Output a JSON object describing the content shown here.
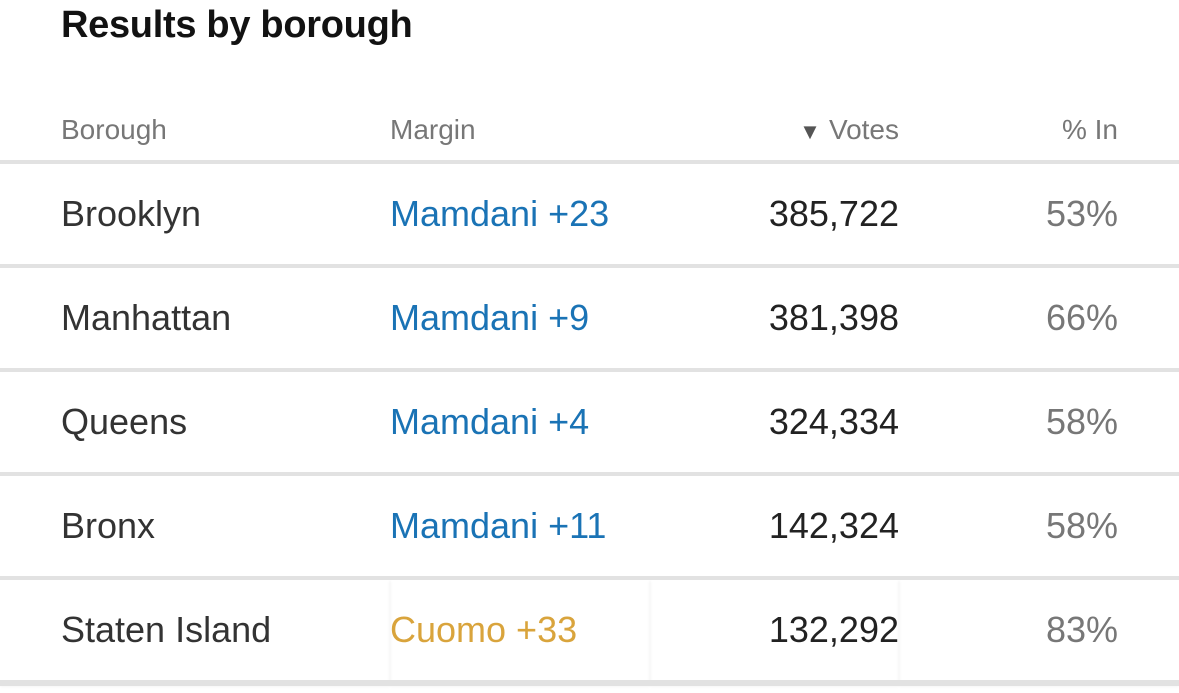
{
  "title": "Results by borough",
  "columns": {
    "borough": "Borough",
    "margin": "Margin",
    "sort_icon": "▼",
    "votes": "Votes",
    "pct_in": "% In"
  },
  "colors": {
    "Mamdani": "#1a73b5",
    "Cuomo": "#d9a43c"
  },
  "rows": [
    {
      "borough": "Brooklyn",
      "margin": "Mamdani +23",
      "leader": "Mamdani",
      "votes": "385,722",
      "pct_in": "53%"
    },
    {
      "borough": "Manhattan",
      "margin": "Mamdani +9",
      "leader": "Mamdani",
      "votes": "381,398",
      "pct_in": "66%"
    },
    {
      "borough": "Queens",
      "margin": "Mamdani +4",
      "leader": "Mamdani",
      "votes": "324,334",
      "pct_in": "58%"
    },
    {
      "borough": "Bronx",
      "margin": "Mamdani +11",
      "leader": "Mamdani",
      "votes": "142,324",
      "pct_in": "58%"
    },
    {
      "borough": "Staten Island",
      "margin": "Cuomo +33",
      "leader": "Cuomo",
      "votes": "132,292",
      "pct_in": "83%"
    }
  ]
}
